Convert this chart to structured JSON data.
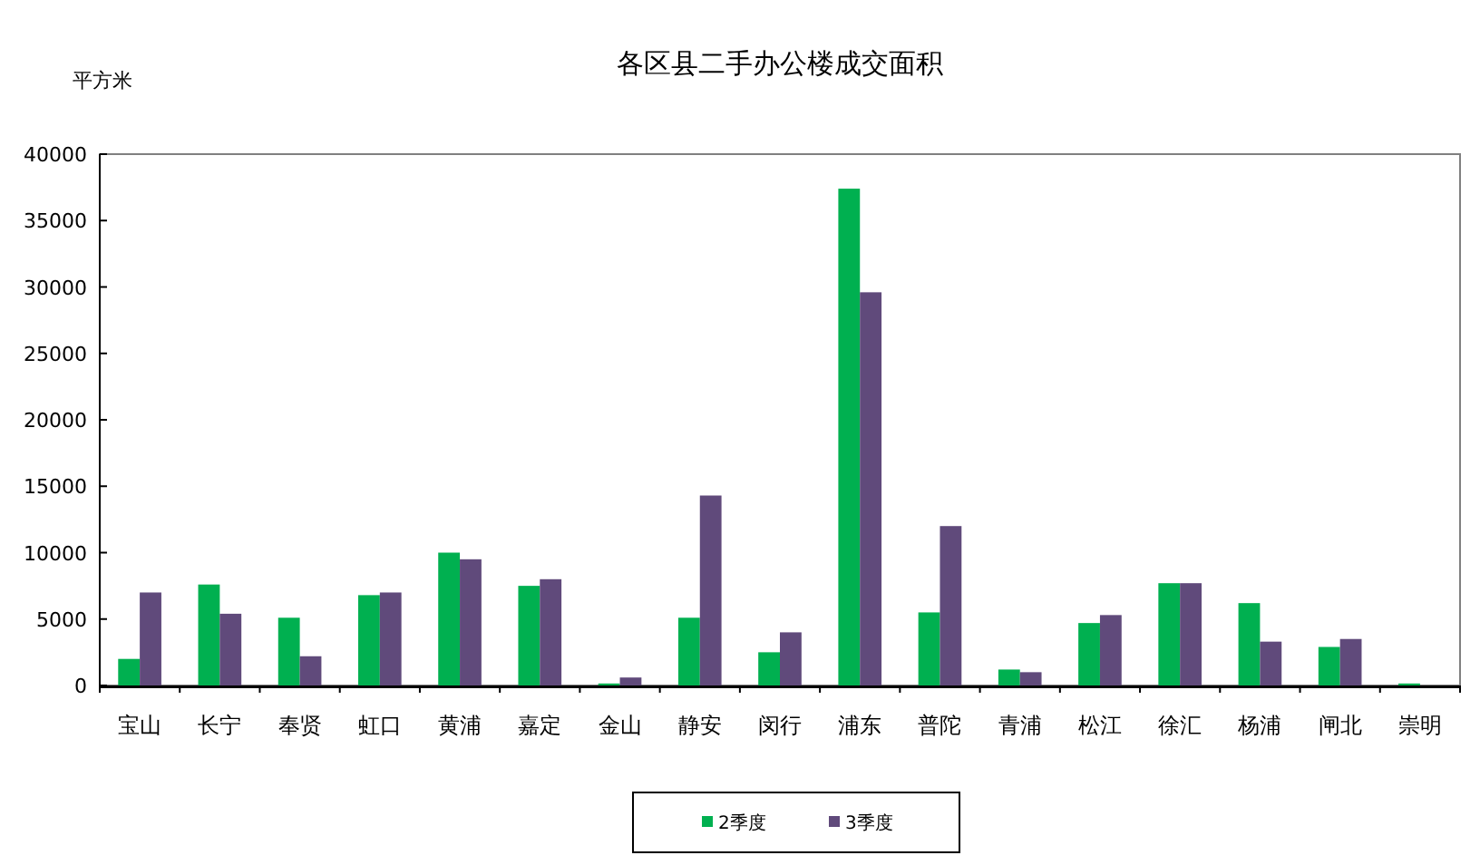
{
  "chart_data": {
    "type": "bar",
    "title": "各区县二手办公楼成交面积",
    "ylabel": "平方米",
    "categories": [
      "宝山",
      "长宁",
      "奉贤",
      "虹口",
      "黄浦",
      "嘉定",
      "金山",
      "静安",
      "闵行",
      "浦东",
      "普陀",
      "青浦",
      "松江",
      "徐汇",
      "杨浦",
      "闸北",
      "崇明"
    ],
    "series": [
      {
        "name": "2季度",
        "color": "#00b050",
        "values": [
          2000,
          7600,
          5100,
          6800,
          10000,
          7500,
          150,
          5100,
          2500,
          37400,
          5500,
          1200,
          4700,
          7700,
          6200,
          2900,
          150
        ]
      },
      {
        "name": "3季度",
        "color": "#604a7b",
        "values": [
          7000,
          5400,
          2200,
          7000,
          9500,
          8000,
          600,
          14300,
          4000,
          29600,
          12000,
          1000,
          5300,
          7700,
          3300,
          3500,
          0
        ]
      }
    ],
    "ylim": [
      0,
      40000
    ],
    "yticks": [
      0,
      5000,
      10000,
      15000,
      20000,
      25000,
      30000,
      35000,
      40000
    ],
    "grid": false,
    "legend": "bottom"
  }
}
